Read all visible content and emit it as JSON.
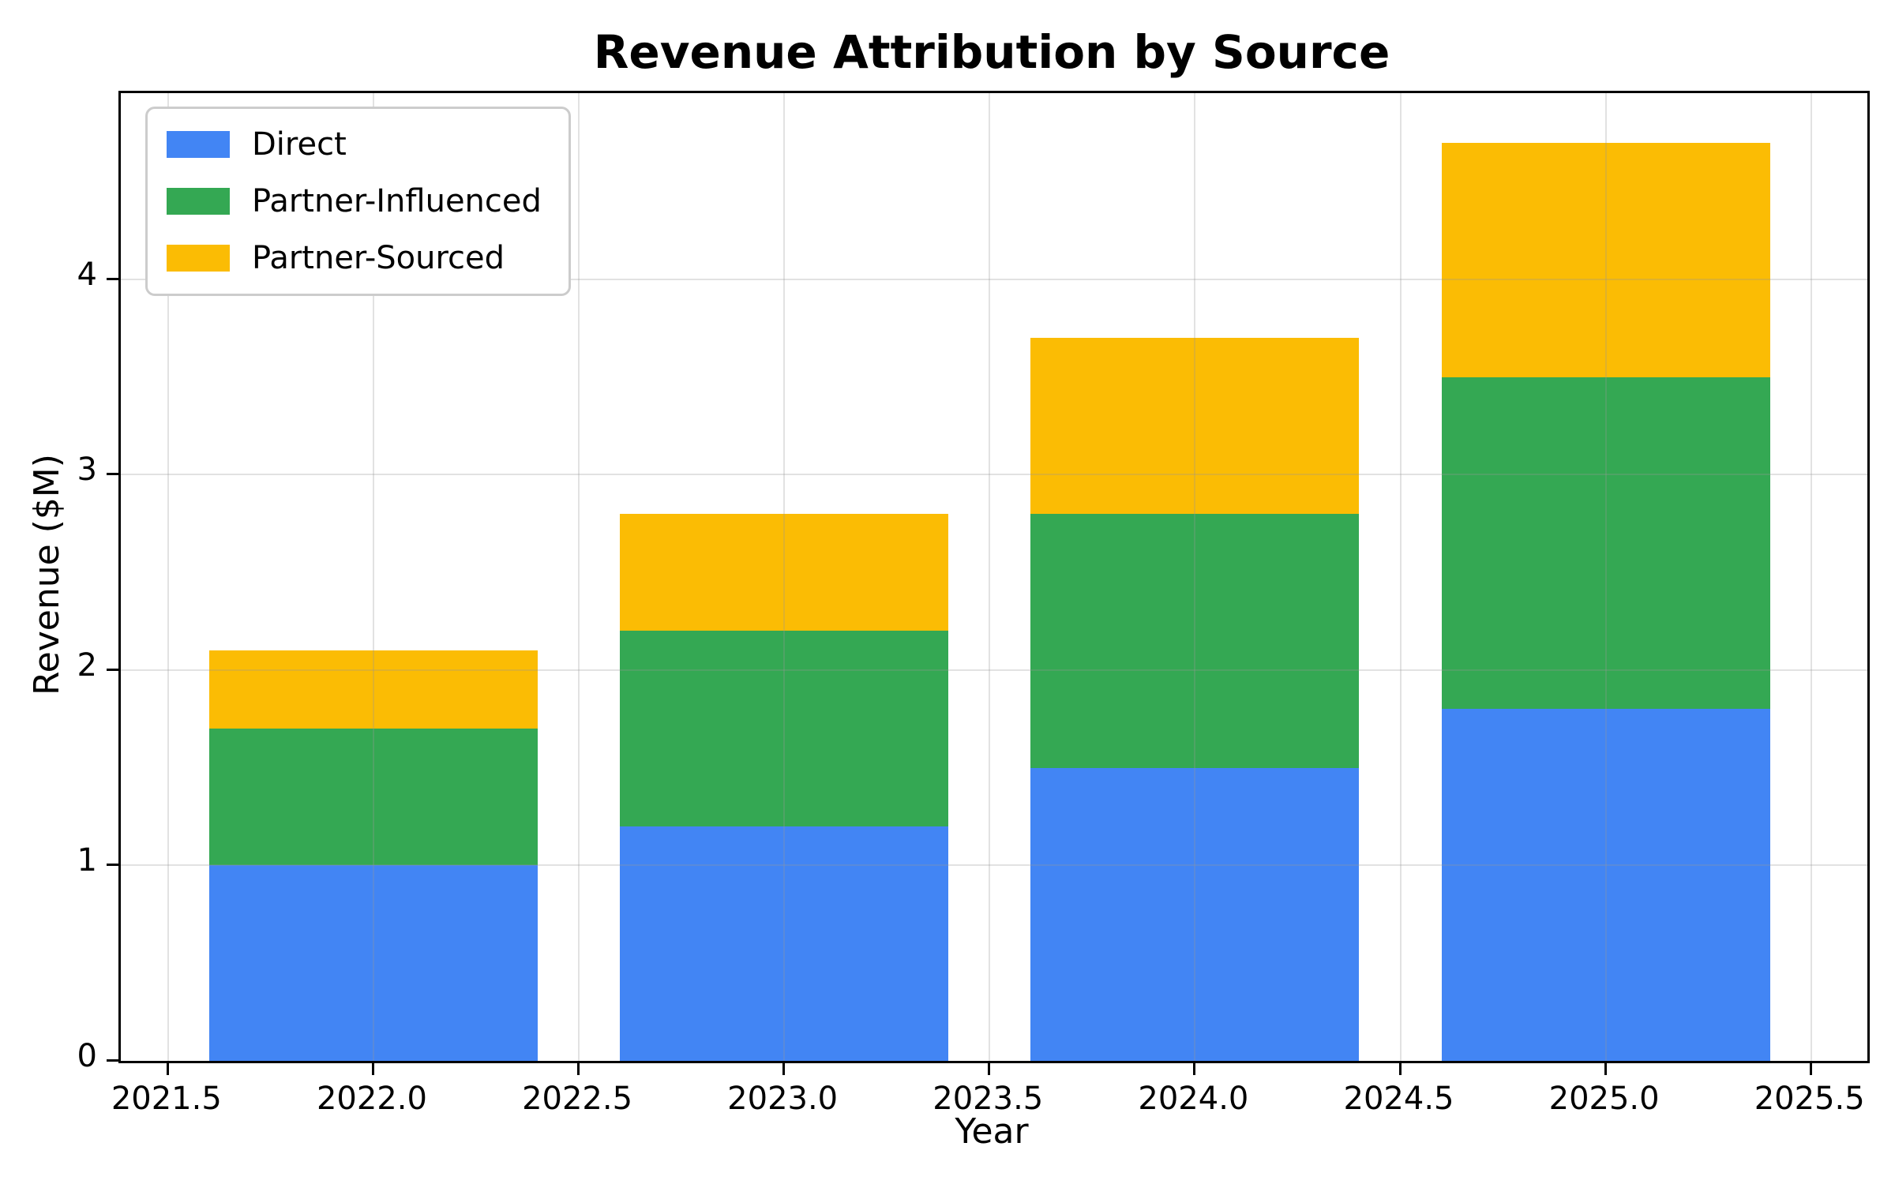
{
  "figure": {
    "background": "#ffffff"
  },
  "chart_data": {
    "type": "bar",
    "stacked": true,
    "title": "Revenue Attribution by Source",
    "xlabel": "Year",
    "ylabel": "Revenue ($M)",
    "categories": [
      2022,
      2023,
      2024,
      2025
    ],
    "series": [
      {
        "name": "Direct",
        "color": "#4285F4",
        "values": [
          1.0,
          1.2,
          1.5,
          1.8
        ]
      },
      {
        "name": "Partner-Influenced",
        "color": "#34A853",
        "values": [
          0.7,
          1.0,
          1.3,
          1.7
        ]
      },
      {
        "name": "Partner-Sourced",
        "color": "#FBBC04",
        "values": [
          0.4,
          0.6,
          0.9,
          1.2
        ]
      }
    ],
    "bar_width": 0.8,
    "xlim": [
      2021.385,
      2025.637
    ],
    "ylim": [
      0,
      4.953
    ],
    "xticks": [
      2021.5,
      2022.0,
      2022.5,
      2023.0,
      2023.5,
      2024.0,
      2024.5,
      2025.0,
      2025.5
    ],
    "xtick_labels": [
      "2021.5",
      "2022.0",
      "2022.5",
      "2023.0",
      "2023.5",
      "2024.0",
      "2024.5",
      "2025.0",
      "2025.5"
    ],
    "yticks": [
      0,
      1,
      2,
      3,
      4
    ],
    "ytick_labels": [
      "0",
      "1",
      "2",
      "3",
      "4"
    ],
    "grid": true,
    "grid_color": "rgba(150,150,150,0.28)",
    "legend_position": "upper left",
    "axis_color": "#000000"
  }
}
